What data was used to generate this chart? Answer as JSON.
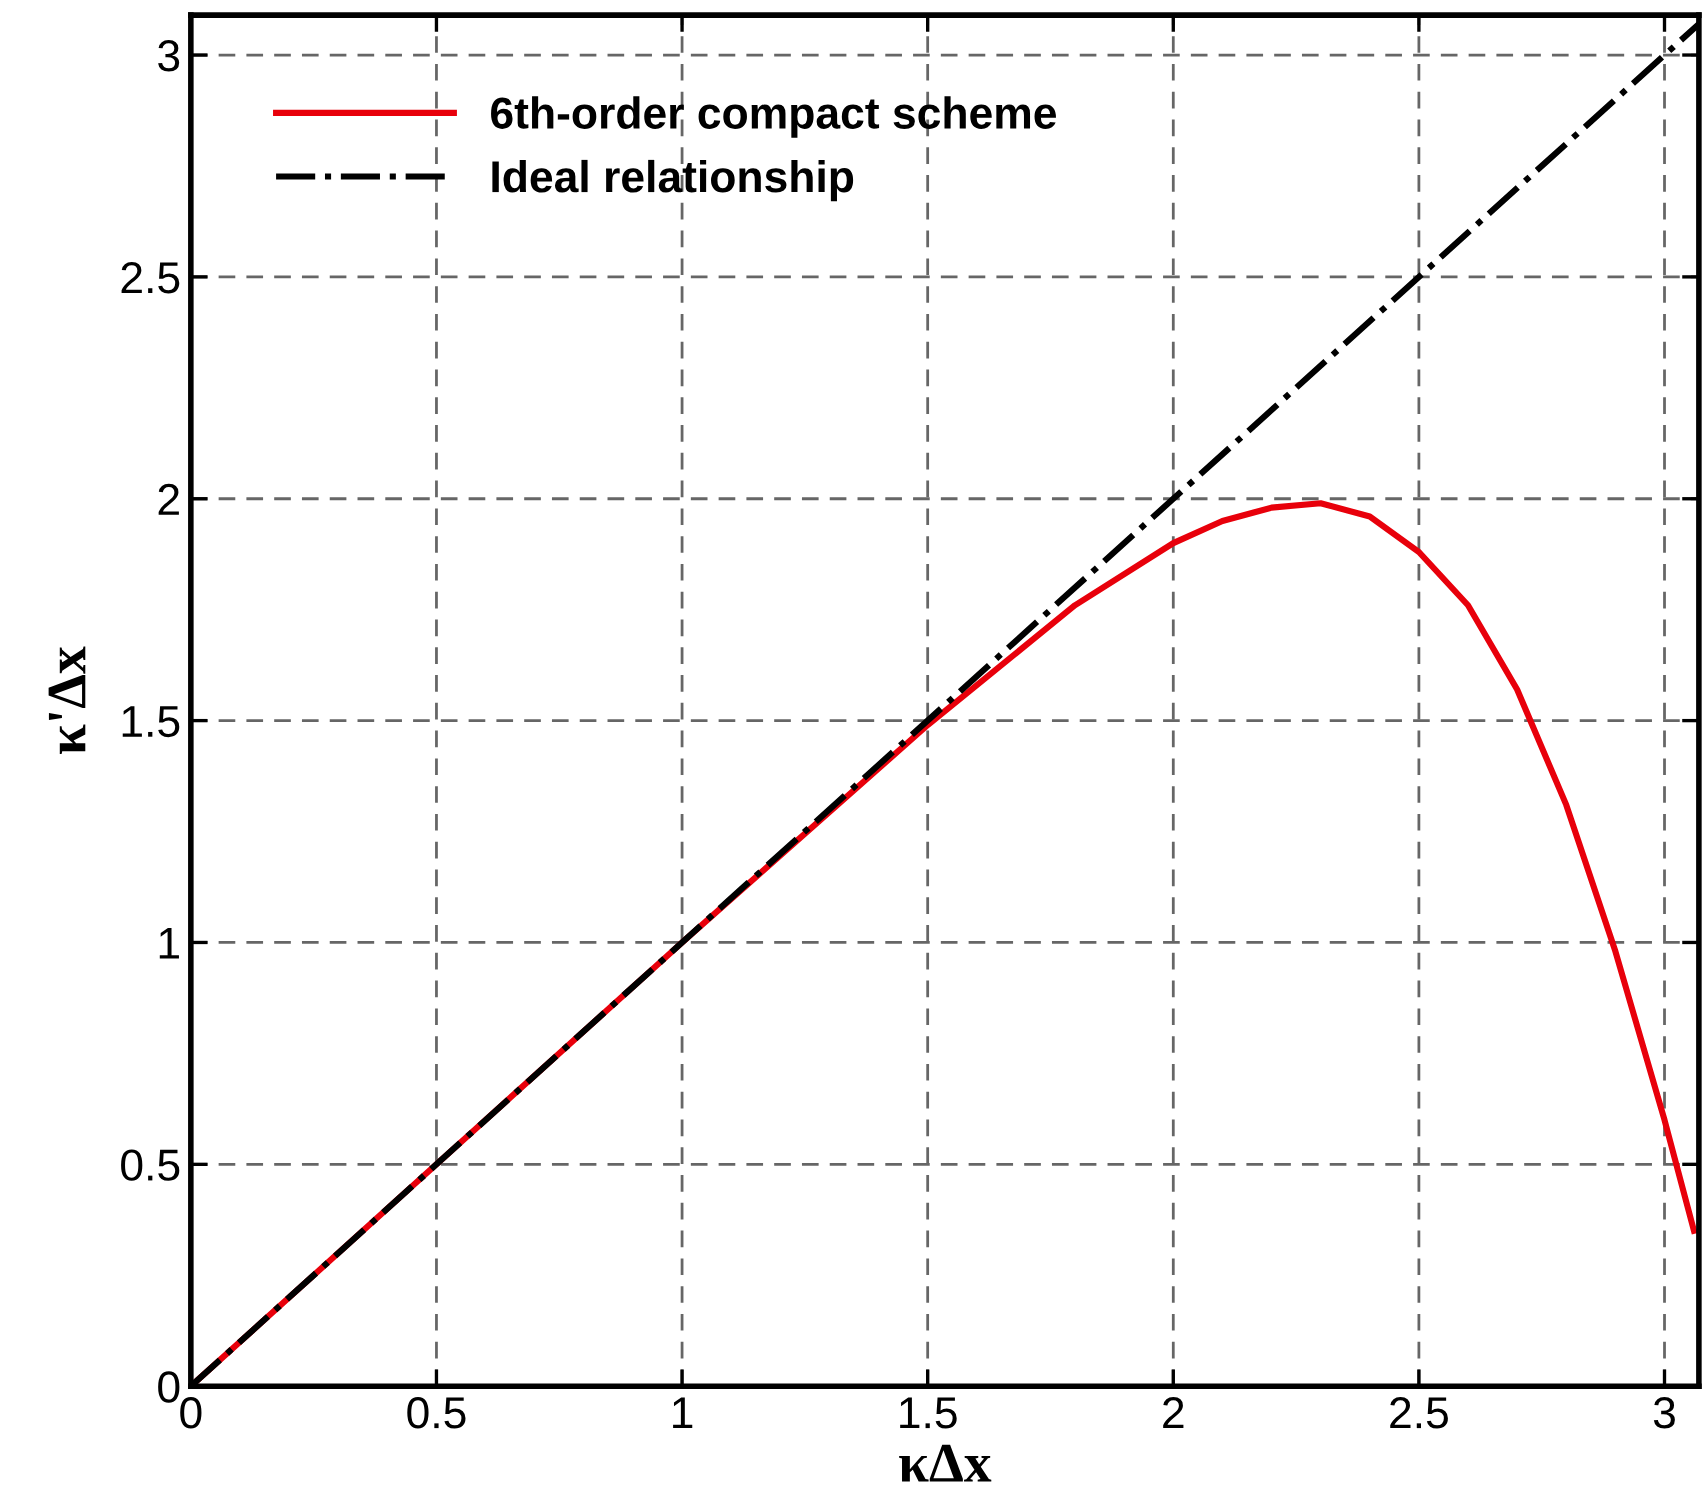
{
  "chart_data": {
    "type": "line",
    "xlabel": "κΔx",
    "ylabel": "κ'Δx",
    "xlim": [
      0,
      3.07
    ],
    "ylim": [
      0,
      3.09
    ],
    "xticks": [
      0,
      0.5,
      1,
      1.5,
      2,
      2.5,
      3
    ],
    "yticks": [
      0,
      0.5,
      1,
      1.5,
      2,
      2.5,
      3
    ],
    "grid": true,
    "legend": "top left",
    "series": [
      {
        "name": "6th-order compact scheme",
        "color": "#e8000b",
        "line_style": "solid",
        "x": [
          0,
          0.5,
          1.0,
          1.5,
          1.8,
          2.0,
          2.1,
          2.2,
          2.3,
          2.4,
          2.5,
          2.6,
          2.7,
          2.8,
          2.9,
          3.0,
          3.06
        ],
        "values": [
          0,
          0.5,
          1.0,
          1.49,
          1.76,
          1.9,
          1.95,
          1.98,
          1.99,
          1.96,
          1.88,
          1.76,
          1.57,
          1.31,
          0.98,
          0.6,
          0.35
        ]
      },
      {
        "name": "Ideal relationship",
        "color": "#000000",
        "line_style": "dashdot",
        "x": [
          0,
          3.07
        ],
        "values": [
          0,
          3.07
        ]
      }
    ]
  }
}
